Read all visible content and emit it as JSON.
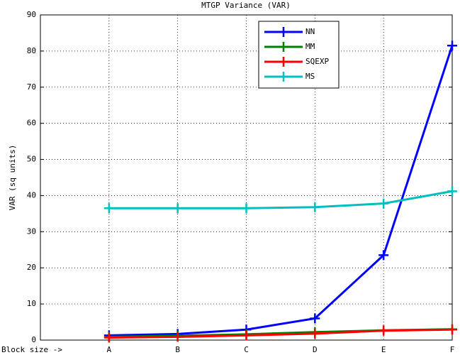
{
  "chart_data": {
    "type": "line",
    "title": "MTGP Variance (VAR)",
    "y_label": "VAR (sq units)",
    "categories": [
      "Block size ->",
      "A",
      "B",
      "C",
      "D",
      "E",
      "F"
    ],
    "series": [
      {
        "name": "NN",
        "color": "#0000ff",
        "values": [
          null,
          1.3,
          1.7,
          2.9,
          6.0,
          23.5,
          81.5
        ]
      },
      {
        "name": "MM",
        "color": "#007f00",
        "values": [
          null,
          0.9,
          1.2,
          1.6,
          2.2,
          2.7,
          3.0
        ]
      },
      {
        "name": "SQEXP",
        "color": "#ff0000",
        "values": [
          null,
          0.7,
          0.9,
          1.3,
          1.8,
          2.6,
          2.9
        ]
      },
      {
        "name": "MS",
        "color": "#00bfbf",
        "values": [
          null,
          36.5,
          36.5,
          36.5,
          36.8,
          37.8,
          41.2
        ]
      }
    ],
    "ylim": [
      0,
      90
    ],
    "yticks": [
      0,
      10,
      20,
      30,
      40,
      50,
      60,
      70,
      80,
      90
    ],
    "grid": true,
    "legend": "top"
  }
}
